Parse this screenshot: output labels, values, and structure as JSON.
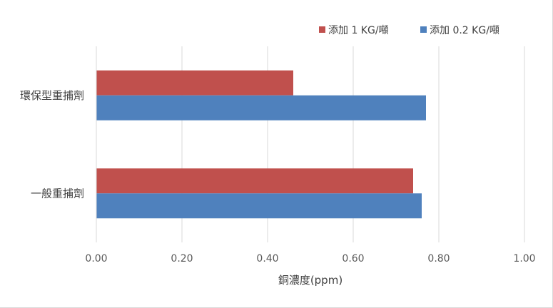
{
  "chart_data": {
    "type": "bar",
    "orientation": "horizontal",
    "categories": [
      "環保型重捕劑",
      "一般重捕劑"
    ],
    "series": [
      {
        "name": "添加 1 KG/噸",
        "color": "#c0504d",
        "values": [
          0.46,
          0.74
        ]
      },
      {
        "name": "添加 0.2 KG/噸",
        "color": "#4f81bd",
        "values": [
          0.77,
          0.76
        ]
      }
    ],
    "xlabel": "銅濃度(ppm)",
    "xlim": [
      0,
      1.0
    ],
    "xticks": [
      "0.00",
      "0.20",
      "0.40",
      "0.60",
      "0.80",
      "1.00"
    ],
    "grid": true,
    "legend_position": "top-right"
  }
}
